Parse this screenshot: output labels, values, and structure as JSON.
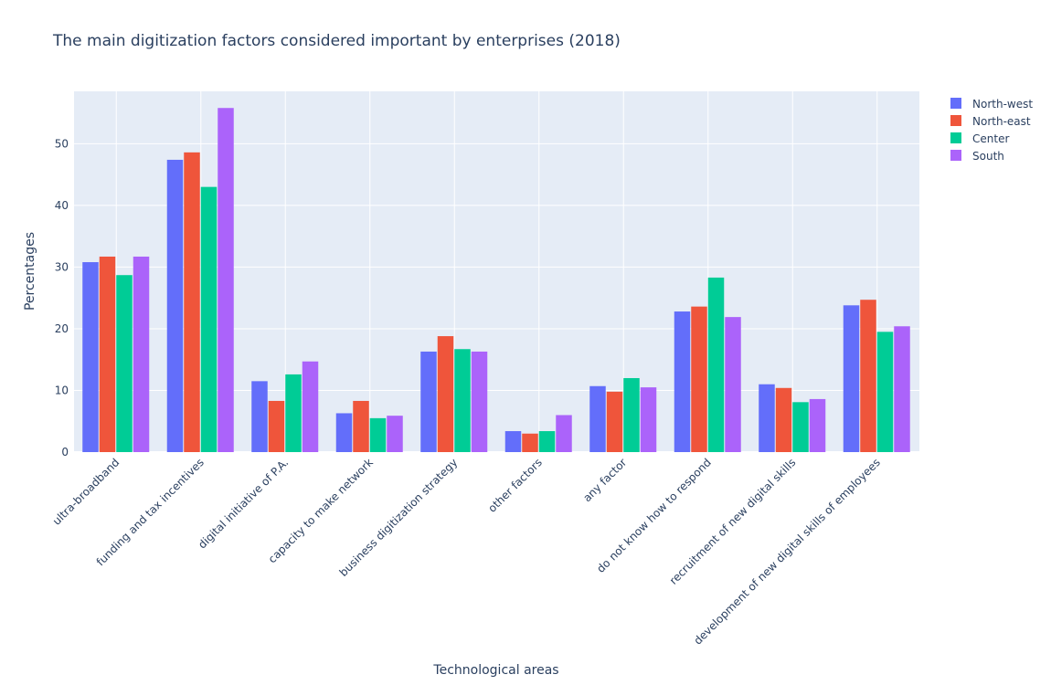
{
  "chart_data": {
    "type": "bar",
    "title": "The main digitization factors considered important by enterprises (2018)",
    "xlabel": "Technological areas",
    "ylabel": "Percentages",
    "ylim": [
      0,
      58.5
    ],
    "yticks": [
      0,
      10,
      20,
      30,
      40,
      50
    ],
    "grid": true,
    "legend_position": "top-right",
    "categories": [
      "ultra-broadband",
      "funding and tax incentives",
      "digital initiative of P.A.",
      "capacity to make network",
      "business digitization strategy",
      "other factors",
      "any factor",
      "do not know how to respond",
      "recruitment of new digital skills",
      "development of new digital skills  of employees"
    ],
    "series": [
      {
        "name": "North-west",
        "color": "#636efa",
        "values": [
          30.8,
          47.4,
          11.5,
          6.3,
          16.3,
          3.4,
          10.7,
          22.8,
          11.0,
          23.8
        ]
      },
      {
        "name": "North-east",
        "color": "#ef553b",
        "values": [
          31.7,
          48.6,
          8.3,
          8.3,
          18.8,
          3.0,
          9.8,
          23.6,
          10.4,
          24.7
        ]
      },
      {
        "name": "Center",
        "color": "#00cc96",
        "values": [
          28.7,
          43.0,
          12.6,
          5.5,
          16.7,
          3.4,
          12.0,
          28.3,
          8.1,
          19.5
        ]
      },
      {
        "name": "South",
        "color": "#ab63fa",
        "values": [
          31.7,
          55.8,
          14.7,
          5.9,
          16.3,
          6.0,
          10.5,
          21.9,
          8.6,
          20.4
        ]
      }
    ]
  }
}
